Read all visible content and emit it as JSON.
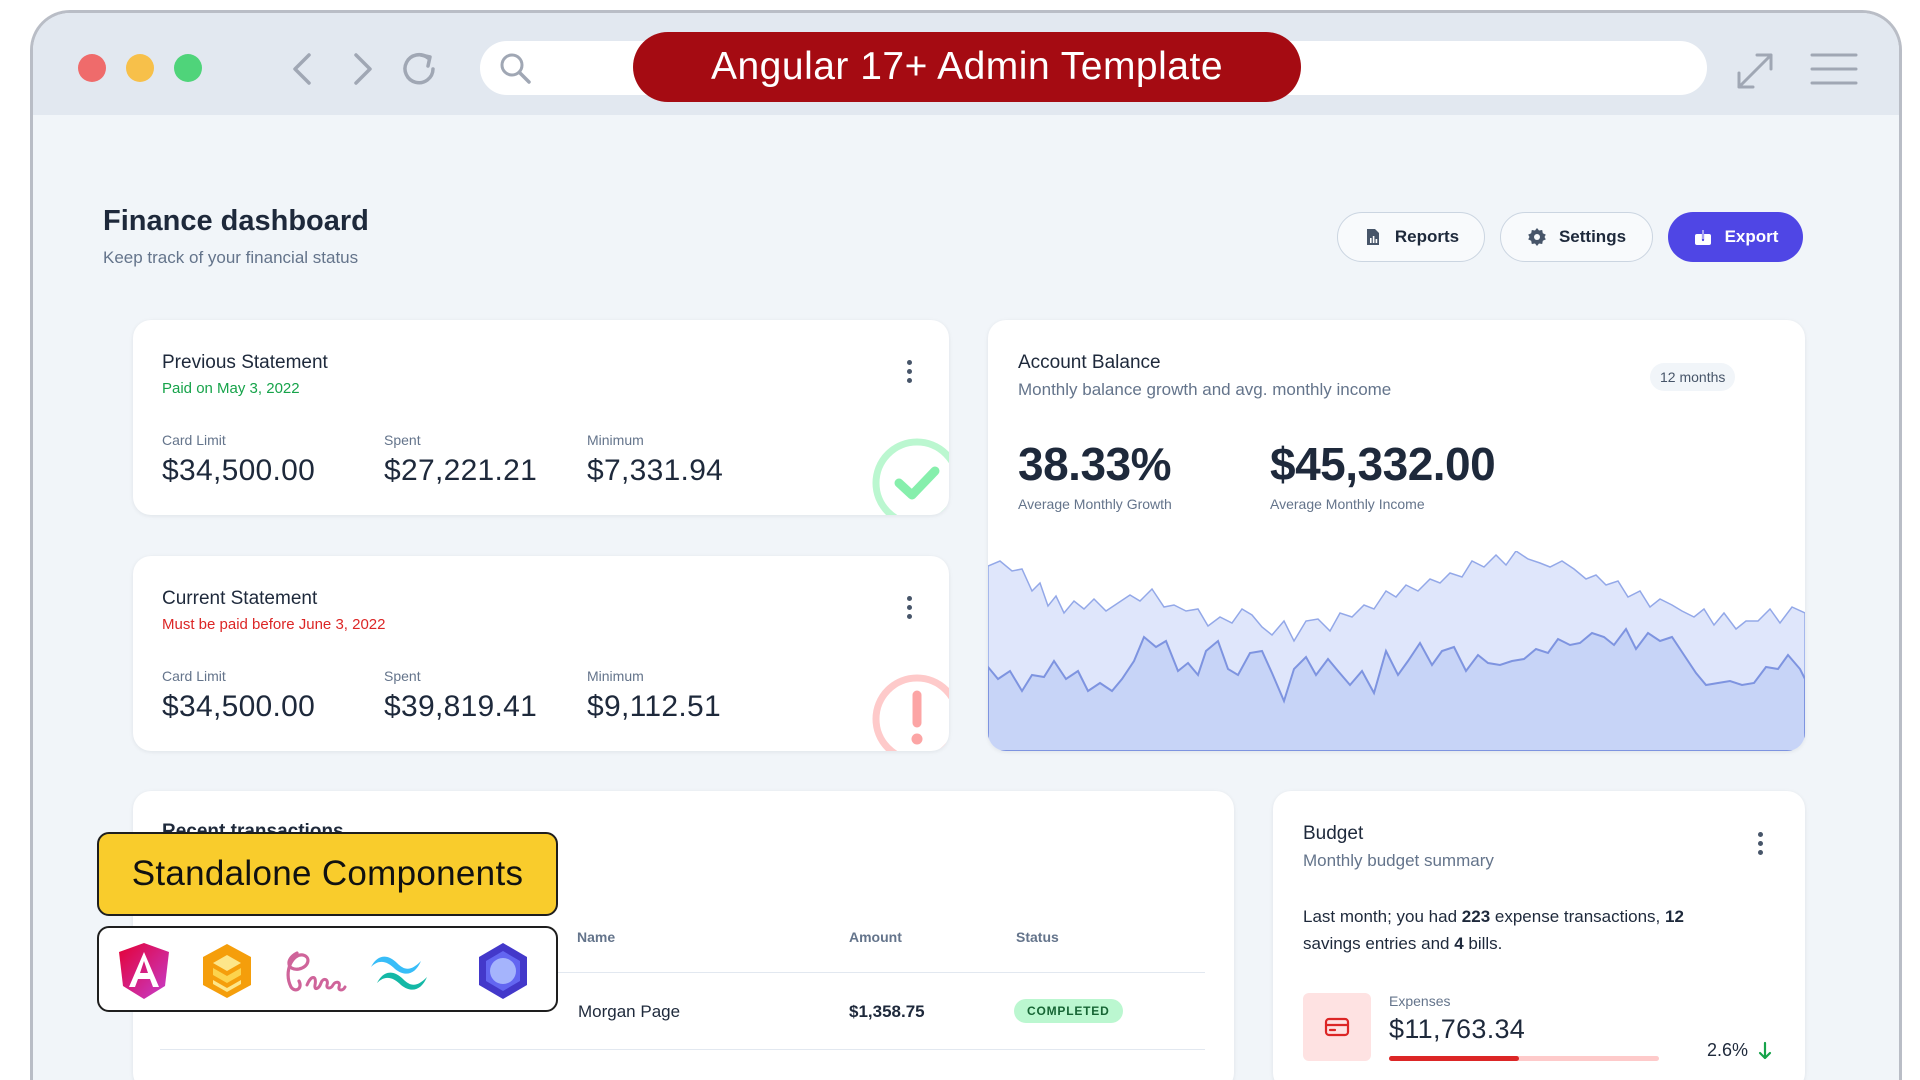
{
  "banner": {
    "title": "Angular 17+ Admin Template"
  },
  "header": {
    "title": "Finance dashboard",
    "subtitle": "Keep track of your financial status",
    "reports_label": "Reports",
    "settings_label": "Settings",
    "export_label": "Export"
  },
  "previous_statement": {
    "title": "Previous Statement",
    "subtitle": "Paid on May 3, 2022",
    "card_limit_label": "Card Limit",
    "card_limit": "$34,500.00",
    "spent_label": "Spent",
    "spent": "$27,221.21",
    "minimum_label": "Minimum",
    "minimum": "$7,331.94"
  },
  "current_statement": {
    "title": "Current Statement",
    "subtitle": "Must be paid before June 3, 2022",
    "card_limit_label": "Card Limit",
    "card_limit": "$34,500.00",
    "spent_label": "Spent",
    "spent": "$39,819.41",
    "minimum_label": "Minimum",
    "minimum": "$9,112.51"
  },
  "account_balance": {
    "title": "Account Balance",
    "subtitle": "Monthly balance growth and avg. monthly income",
    "range_chip": "12 months",
    "growth": "38.33%",
    "growth_label": "Average Monthly Growth",
    "income": "$45,332.00",
    "income_label": "Average Monthly Income"
  },
  "overlay": {
    "badge": "Standalone Components",
    "logos": [
      "angular-logo",
      "aws-amplify-logo",
      "sass-logo",
      "tailwind-logo",
      "hexagon-logo"
    ]
  },
  "transactions": {
    "title": "Recent transactions",
    "columns": [
      "Name",
      "Amount",
      "Status"
    ],
    "rows": [
      {
        "name": "Morgan Page",
        "amount": "$1,358.75",
        "status": "COMPLETED"
      }
    ]
  },
  "budget": {
    "title": "Budget",
    "subtitle": "Monthly budget summary",
    "text_a": "Last month; you had ",
    "count_tx": "223",
    "text_b": " expense transactions, ",
    "count_savings": "12",
    "text_c": " savings entries and ",
    "count_bills": "4",
    "text_d": " bills.",
    "expenses_label": "Expenses",
    "expenses_value": "$11,763.34",
    "expenses_change": "2.6%",
    "expenses_progress": 0.48
  },
  "colors": {
    "primary": "#4f46e5",
    "success": "#16a34a",
    "danger": "#dc2626",
    "banner": "#a50b12",
    "chart_light": "#dfe6fb",
    "chart_dark": "#c7d4f7",
    "chart_line": "#8ea2e8"
  }
}
